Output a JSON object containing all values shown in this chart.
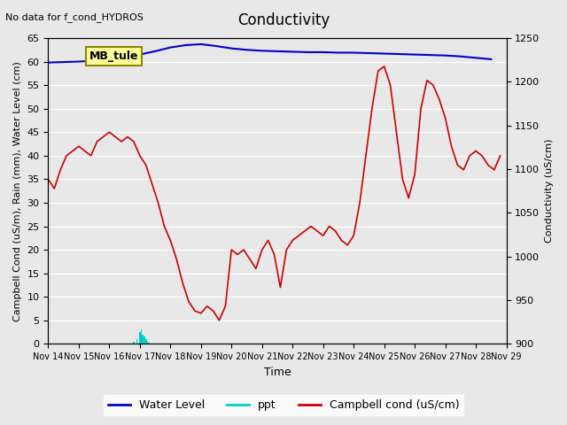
{
  "title": "Conductivity",
  "title_note": "No data for f_cond_HYDROS",
  "xlabel": "Time",
  "ylabel_left": "Campbell Cond (uS/m), Rain (mm), Water Level (cm)",
  "ylabel_right": "Conductivity (uS/cm)",
  "ylim_left": [
    0,
    65
  ],
  "ylim_right": [
    900,
    1250
  ],
  "yticks_left": [
    0,
    5,
    10,
    15,
    20,
    25,
    30,
    35,
    40,
    45,
    50,
    55,
    60,
    65
  ],
  "yticks_right": [
    900,
    950,
    1000,
    1050,
    1100,
    1150,
    1200,
    1250
  ],
  "bg_color": "#e8e8e8",
  "axes_bg_color": "#e8e8e8",
  "legend_box_label": "MB_tule",
  "legend_box_color": "#ffff99",
  "legend_box_edge": "#888800",
  "water_level_color": "#0000cc",
  "ppt_color": "#00cccc",
  "campbell_color": "#cc0000",
  "water_level_data_x": [
    0,
    0.5,
    1,
    1.5,
    2,
    2.5,
    3,
    3.5,
    4,
    4.5,
    5,
    5.5,
    6,
    6.5,
    7,
    7.5,
    8,
    8.5,
    9,
    9.5,
    10,
    10.5,
    11,
    11.5,
    12,
    12.5,
    13,
    13.5,
    14,
    14.5
  ],
  "water_level_data_y": [
    59.8,
    59.9,
    60.0,
    60.2,
    60.5,
    60.9,
    61.5,
    62.2,
    63.0,
    63.5,
    63.7,
    63.3,
    62.8,
    62.5,
    62.3,
    62.2,
    62.1,
    62.0,
    62.0,
    61.9,
    61.9,
    61.8,
    61.7,
    61.6,
    61.5,
    61.4,
    61.3,
    61.1,
    60.8,
    60.5
  ],
  "ppt_data_x": [
    2.8,
    2.9,
    3.0,
    3.05,
    3.1,
    3.15,
    3.2,
    3.25,
    3.3
  ],
  "ppt_data_y": [
    0.5,
    1.0,
    2.5,
    3.0,
    2.0,
    1.5,
    1.0,
    0.5,
    0.3
  ],
  "campbell_data_x": [
    0,
    0.2,
    0.4,
    0.6,
    0.8,
    1.0,
    1.2,
    1.4,
    1.6,
    1.8,
    2.0,
    2.2,
    2.4,
    2.6,
    2.8,
    3.0,
    3.2,
    3.4,
    3.6,
    3.8,
    4.0,
    4.2,
    4.4,
    4.6,
    4.8,
    5.0,
    5.2,
    5.4,
    5.6,
    5.8,
    6.0,
    6.2,
    6.4,
    6.6,
    6.8,
    7.0,
    7.2,
    7.4,
    7.6,
    7.8,
    8.0,
    8.2,
    8.4,
    8.6,
    8.8,
    9.0,
    9.2,
    9.4,
    9.6,
    9.8,
    10.0,
    10.2,
    10.4,
    10.6,
    10.8,
    11.0,
    11.2,
    11.4,
    11.6,
    11.8,
    12.0,
    12.2,
    12.4,
    12.6,
    12.8,
    13.0,
    13.2,
    13.4,
    13.6,
    13.8,
    14.0,
    14.2,
    14.4,
    14.6,
    14.8
  ],
  "campbell_data_y": [
    35,
    33,
    37,
    40,
    41,
    42,
    41,
    40,
    43,
    44,
    45,
    44,
    43,
    44,
    43,
    40,
    38,
    34,
    30,
    25,
    22,
    18,
    13,
    9,
    7,
    6.5,
    8,
    7,
    5,
    8,
    20,
    19,
    20,
    18,
    16,
    20,
    22,
    19,
    12,
    20,
    22,
    23,
    24,
    25,
    24,
    23,
    25,
    24,
    22,
    21,
    23,
    30,
    40,
    50,
    58,
    59,
    55,
    45,
    35,
    31,
    36,
    50,
    56,
    55,
    52,
    48,
    42,
    38,
    37,
    40,
    41,
    40,
    38,
    37,
    40
  ],
  "xmin": 0,
  "xmax": 15,
  "xtick_positions": [
    0,
    1,
    2,
    3,
    4,
    5,
    6,
    7,
    8,
    9,
    10,
    11,
    12,
    13,
    14,
    15
  ],
  "xtick_labels": [
    "Nov 14",
    "Nov 15",
    "Nov 16",
    "Nov 17",
    "Nov 18",
    "Nov 19",
    "Nov 20",
    "Nov 21",
    "Nov 22",
    "Nov 23",
    "Nov 24",
    "Nov 25",
    "Nov 26",
    "Nov 27",
    "Nov 28",
    "Nov 29"
  ]
}
